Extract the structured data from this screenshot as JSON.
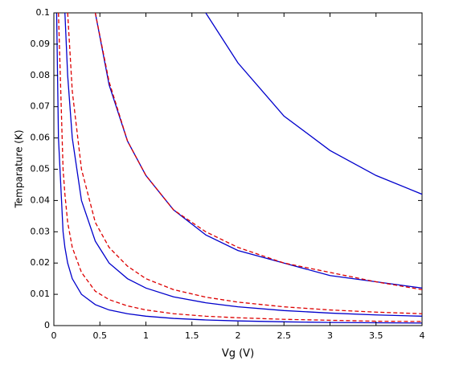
{
  "chart_data": {
    "type": "line",
    "x_label": "Vg (V)",
    "y_label": "Temparature  (K)",
    "x": [
      0.03,
      0.05,
      0.1,
      0.12,
      0.15,
      0.2,
      0.3,
      0.45,
      0.6,
      0.8,
      1,
      1.3,
      1.65,
      2,
      2.5,
      3,
      3.5,
      4
    ],
    "series": [
      {
        "color": "#0000cc",
        "style": "solid",
        "values": [
          null,
          null,
          null,
          null,
          null,
          null,
          null,
          null,
          null,
          null,
          null,
          null,
          0.1,
          0.084,
          0.067,
          0.056,
          0.048,
          0.042
        ]
      },
      {
        "color": "#0000cc",
        "style": "solid",
        "values": [
          null,
          null,
          null,
          null,
          null,
          null,
          null,
          0.1,
          0.077,
          0.059,
          0.048,
          0.037,
          0.029,
          0.024,
          0.02,
          0.016,
          0.014,
          0.012
        ]
      },
      {
        "color": "#dd0000",
        "style": "dashed",
        "values": [
          null,
          null,
          null,
          null,
          null,
          null,
          null,
          0.1,
          0.078,
          0.059,
          0.048,
          0.037,
          0.03,
          0.025,
          0.02,
          0.017,
          0.014,
          0.0115
        ]
      },
      {
        "color": "#0000cc",
        "style": "solid",
        "values": [
          null,
          null,
          null,
          0.1,
          0.08,
          0.06,
          0.04,
          0.027,
          0.02,
          0.015,
          0.012,
          0.0092,
          0.0073,
          0.006,
          0.0048,
          0.004,
          0.0034,
          0.003
        ]
      },
      {
        "color": "#dd0000",
        "style": "dashed",
        "values": [
          null,
          null,
          null,
          null,
          0.1,
          0.075,
          0.05,
          0.033,
          0.025,
          0.019,
          0.015,
          0.0115,
          0.0091,
          0.0075,
          0.006,
          0.005,
          0.0043,
          0.0038
        ]
      },
      {
        "color": "#0000cc",
        "style": "solid",
        "values": [
          0.1,
          0.06,
          0.03,
          0.025,
          0.02,
          0.015,
          0.01,
          0.0067,
          0.005,
          0.0038,
          0.003,
          0.0023,
          0.0018,
          0.0015,
          0.0012,
          0.001,
          0.0009,
          0.0008
        ]
      },
      {
        "color": "#dd0000",
        "style": "dashed",
        "values": [
          null,
          0.1,
          0.05,
          0.042,
          0.033,
          0.025,
          0.017,
          0.011,
          0.0083,
          0.0063,
          0.005,
          0.0038,
          0.003,
          0.0025,
          0.002,
          0.0017,
          0.0014,
          0.0013
        ]
      }
    ],
    "xlim": [
      0,
      4
    ],
    "xticks": [
      0,
      0.5,
      1,
      1.5,
      2,
      2.5,
      3,
      3.5,
      4
    ],
    "ylim": [
      0,
      0.1
    ],
    "yticks": [
      0,
      0.01,
      0.02,
      0.03,
      0.04,
      0.05,
      0.06,
      0.07,
      0.08,
      0.09,
      0.1
    ]
  }
}
